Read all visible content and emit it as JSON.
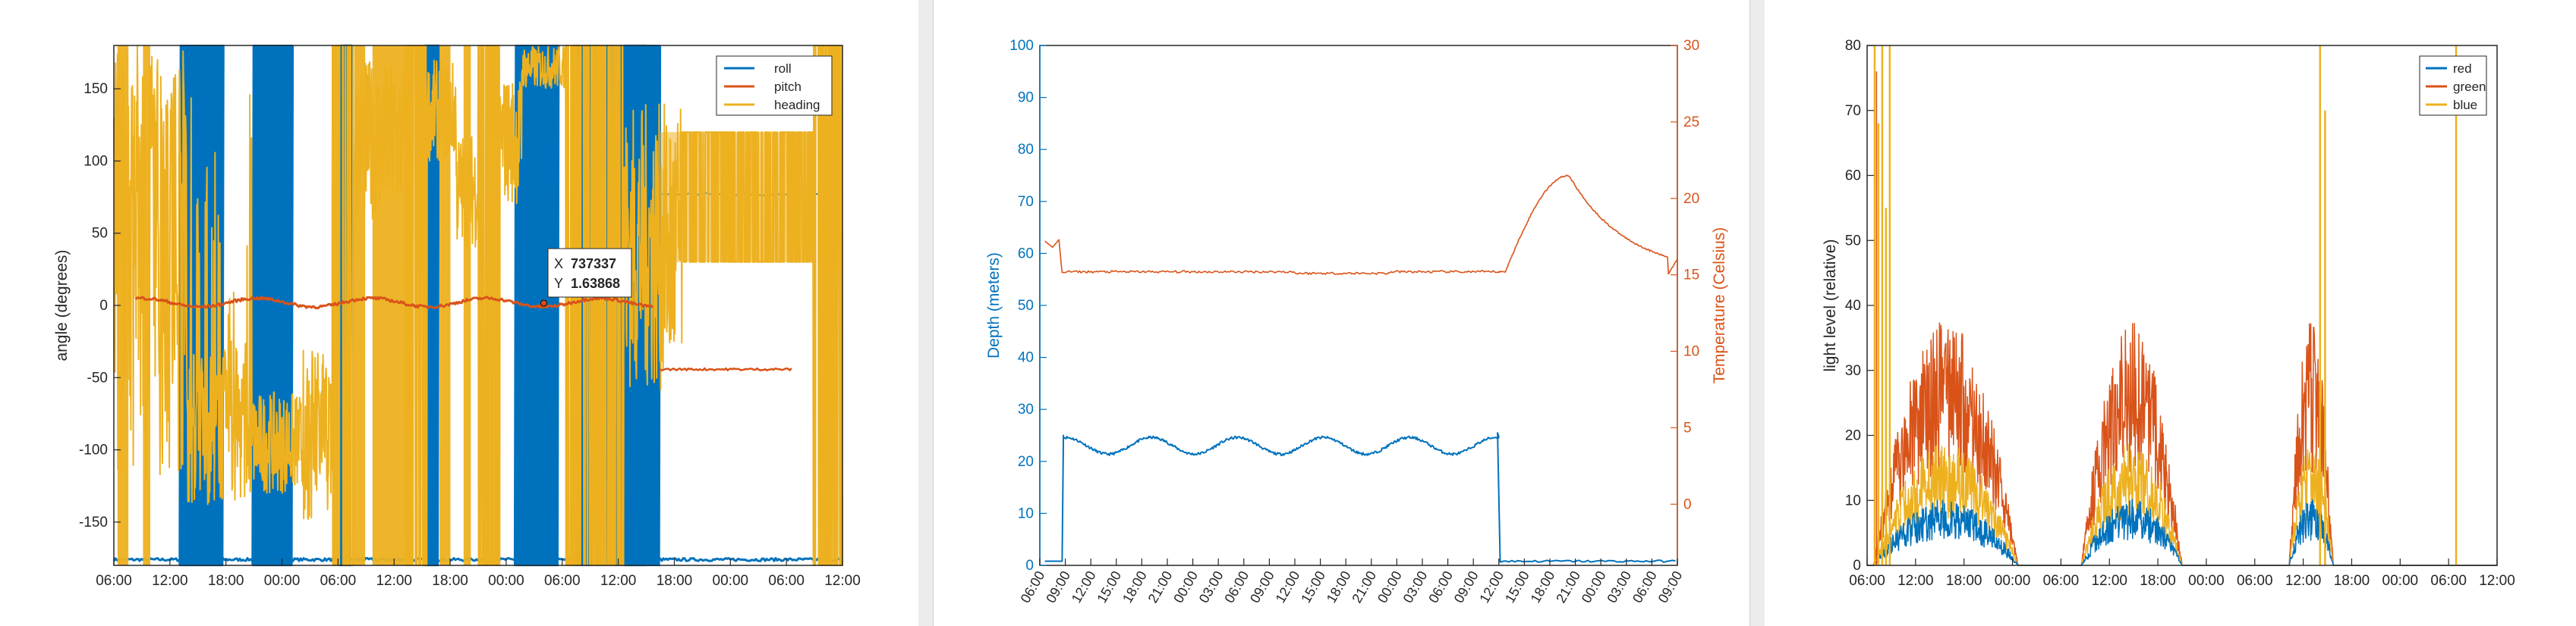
{
  "colors": {
    "blue": "#0072BD",
    "orange": "#D95319",
    "yellow": "#EDB120",
    "axis": "#262626",
    "divider": "#ececec",
    "divider_edge": "#cfcfcf"
  },
  "chart_data": [
    {
      "type": "line",
      "ylabel": "angle (degrees)",
      "ylim": [
        -180,
        180
      ],
      "yticks": [
        "-150",
        "-100",
        "-50",
        "0",
        "50",
        "100",
        "150"
      ],
      "xticks": [
        "06:00",
        "12:00",
        "18:00",
        "00:00",
        "06:00",
        "12:00",
        "18:00",
        "00:00",
        "06:00",
        "12:00",
        "18:00",
        "00:00",
        "06:00",
        "12:00"
      ],
      "legend_position": "top-right",
      "series": [
        {
          "name": "roll",
          "color": "#0072BD"
        },
        {
          "name": "pitch",
          "color": "#D95319"
        },
        {
          "name": "heading",
          "color": "#EDB120"
        }
      ],
      "datatip": {
        "x_label": "X",
        "x_value": "737337",
        "y_label": "Y",
        "y_value": "1.63868"
      }
    },
    {
      "type": "line",
      "ylabel_left": "Depth (meters)",
      "ylabel_right": "Temperature (Celsius)",
      "ylim_left": [
        0,
        100
      ],
      "ylim_right": [
        -4,
        30
      ],
      "yticks_left": [
        "0",
        "10",
        "20",
        "30",
        "40",
        "50",
        "60",
        "70",
        "80",
        "90",
        "100"
      ],
      "yticks_right": [
        "0",
        "5",
        "10",
        "15",
        "20",
        "25",
        "30"
      ],
      "xticks": [
        "06:00",
        "09:00",
        "12:00",
        "15:00",
        "18:00",
        "21:00",
        "00:00",
        "03:00",
        "06:00",
        "09:00",
        "12:00",
        "15:00",
        "18:00",
        "21:00",
        "00:00",
        "03:00",
        "06:00",
        "09:00",
        "12:00",
        "15:00",
        "18:00",
        "21:00",
        "00:00",
        "03:00",
        "06:00",
        "09:00"
      ],
      "series": [
        {
          "name": "depth",
          "axis": "left",
          "color": "#0072BD"
        },
        {
          "name": "temperature",
          "axis": "right",
          "color": "#D95319"
        }
      ]
    },
    {
      "type": "line",
      "ylabel": "light level (relative)",
      "ylim": [
        0,
        80
      ],
      "yticks": [
        "0",
        "10",
        "20",
        "30",
        "40",
        "50",
        "60",
        "70",
        "80"
      ],
      "xticks": [
        "06:00",
        "12:00",
        "18:00",
        "00:00",
        "06:00",
        "12:00",
        "18:00",
        "00:00",
        "06:00",
        "12:00",
        "18:00",
        "00:00",
        "06:00",
        "12:00"
      ],
      "legend_position": "top-right",
      "series": [
        {
          "name": "red",
          "color": "#0072BD"
        },
        {
          "name": "green",
          "color": "#D95319"
        },
        {
          "name": "blue",
          "color": "#EDB120"
        }
      ]
    }
  ]
}
